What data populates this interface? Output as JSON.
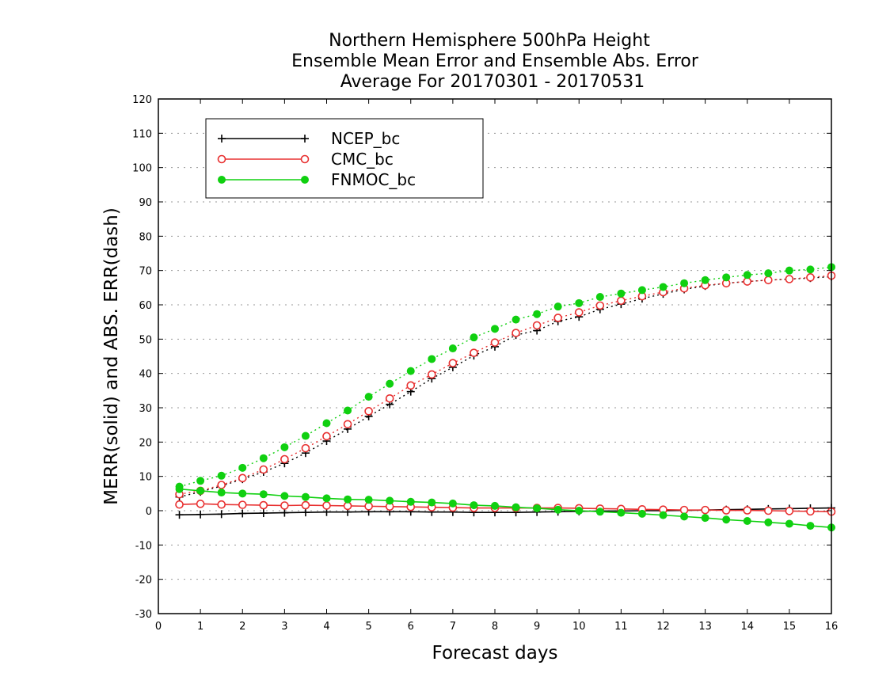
{
  "chart_data": {
    "type": "line",
    "title_lines": [
      "Northern Hemisphere 500hPa Height",
      "Ensemble Mean Error and Ensemble Abs. Error",
      "Average For 20170301 - 20170531"
    ],
    "xlabel": "Forecast days",
    "ylabel": "MERR(solid) and ABS. ERR(dash)",
    "xlim": [
      0,
      16
    ],
    "ylim": [
      -30,
      120
    ],
    "xticks": [
      0,
      1,
      2,
      3,
      4,
      5,
      6,
      7,
      8,
      9,
      10,
      11,
      12,
      13,
      14,
      15,
      16
    ],
    "yticks": [
      -30,
      -20,
      -10,
      0,
      10,
      20,
      30,
      40,
      50,
      60,
      70,
      80,
      90,
      100,
      110,
      120
    ],
    "grid": "horizontal dotted",
    "legend_position": "top-left",
    "x": [
      0.5,
      1,
      1.5,
      2,
      2.5,
      3,
      3.5,
      4,
      4.5,
      5,
      5.5,
      6,
      6.5,
      7,
      7.5,
      8,
      8.5,
      9,
      9.5,
      10,
      10.5,
      11,
      11.5,
      12,
      12.5,
      13,
      13.5,
      14,
      14.5,
      15,
      15.5,
      16
    ],
    "series": [
      {
        "name": "NCEP_bc",
        "color": "#000000",
        "marker": "plus",
        "merr": [
          -1.2,
          -1.1,
          -1,
          -0.8,
          -0.7,
          -0.6,
          -0.5,
          -0.4,
          -0.4,
          -0.3,
          -0.3,
          -0.3,
          -0.4,
          -0.4,
          -0.5,
          -0.5,
          -0.5,
          -0.4,
          -0.3,
          -0.2,
          -0.1,
          -0.1,
          0,
          0,
          0.1,
          0.2,
          0.3,
          0.4,
          0.5,
          0.6,
          0.7,
          0.8
        ],
        "abs_err": [
          4,
          5.5,
          7.2,
          9.2,
          11.3,
          13.8,
          16.8,
          20.3,
          23.8,
          27.5,
          31,
          34.7,
          38.5,
          41.8,
          45.2,
          47.8,
          51.2,
          52.5,
          55.2,
          56.5,
          58.7,
          60.2,
          61.8,
          63.2,
          64.5,
          65.5,
          66.3,
          66.8,
          67.2,
          67.5,
          67.8,
          68.2
        ]
      },
      {
        "name": "CMC_bc",
        "color": "#e83030",
        "marker": "open-circle",
        "merr": [
          1.8,
          2,
          1.8,
          1.7,
          1.6,
          1.5,
          1.6,
          1.5,
          1.4,
          1.3,
          1.2,
          1.1,
          1,
          0.9,
          0.8,
          0.8,
          0.8,
          0.8,
          0.8,
          0.7,
          0.6,
          0.5,
          0.4,
          0.3,
          0.2,
          0.2,
          0.1,
          0.1,
          0,
          -0.1,
          -0.2,
          -0.3
        ],
        "abs_err": [
          4.8,
          5.8,
          7.5,
          9.5,
          12,
          15,
          18.2,
          21.7,
          25.2,
          29,
          32.7,
          36.5,
          39.7,
          43,
          46,
          49,
          51.8,
          54,
          56.2,
          57.8,
          59.8,
          61.2,
          62.5,
          63.7,
          64.8,
          65.7,
          66.3,
          66.8,
          67.2,
          67.5,
          68,
          68.5
        ]
      },
      {
        "name": "FNMOC_bc",
        "color": "#10d010",
        "marker": "filled-circle",
        "merr": [
          6.3,
          5.8,
          5.3,
          5,
          4.8,
          4.3,
          4,
          3.6,
          3.3,
          3.2,
          2.9,
          2.6,
          2.4,
          2.1,
          1.6,
          1.4,
          1,
          0.7,
          0.3,
          0,
          -0.3,
          -0.6,
          -0.9,
          -1.3,
          -1.7,
          -2.1,
          -2.6,
          -3,
          -3.4,
          -3.8,
          -4.4,
          -4.9
        ],
        "abs_err": [
          7,
          8.7,
          10.2,
          12.5,
          15.3,
          18.5,
          21.8,
          25.5,
          29.2,
          33.2,
          37,
          40.7,
          44.2,
          47.3,
          50.5,
          53,
          55.7,
          57.3,
          59.5,
          60.5,
          62.3,
          63.3,
          64.3,
          65.2,
          66.3,
          67.2,
          68,
          68.7,
          69.2,
          70,
          70.3,
          71
        ]
      }
    ]
  }
}
